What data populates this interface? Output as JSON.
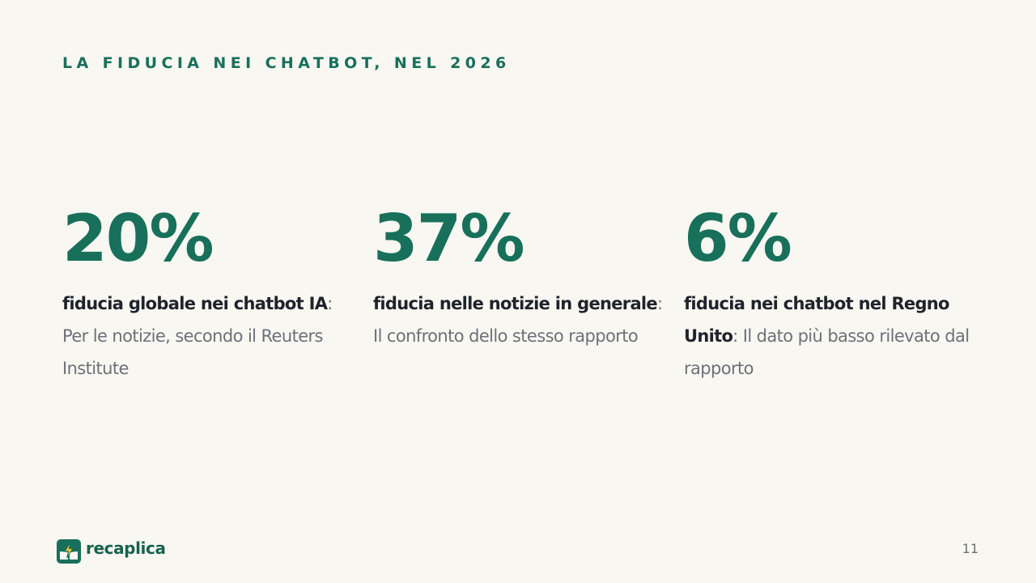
{
  "slide": {
    "kicker": "LA FIDUCIA NEI CHATBOT, NEL 2026",
    "stats": [
      {
        "value": "20%",
        "lead": "fiducia globale nei chatbot IA",
        "detail": ": Per le notizie, secondo il Reuters Institute"
      },
      {
        "value": "37%",
        "lead": "fiducia nelle notizie in generale",
        "detail": ": Il confronto dello stesso rapporto"
      },
      {
        "value": "6%",
        "lead": "fiducia nei chatbot nel Regno Unito",
        "detail": ": Il dato più basso rilevato dal rapporto"
      }
    ]
  },
  "footer": {
    "brand": "recaplica",
    "logo_icon": "lightning-book-icon",
    "page_number": "11"
  },
  "colors": {
    "background": "#f9f7f2",
    "accent": "#18705a",
    "heading_text": "#1f232a",
    "body_text": "#6c7178",
    "logo_bolt": "#f2c230"
  }
}
